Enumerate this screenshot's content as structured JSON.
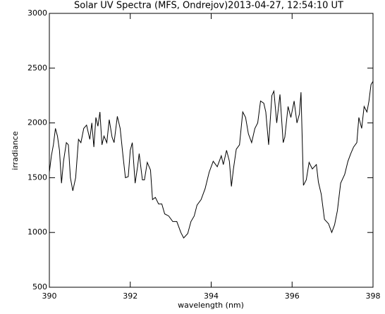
{
  "chart_data": {
    "type": "line",
    "title": "Solar UV Spectra (MFS, Ondrejov)2013-04-27, 12:54:10 UT",
    "x_label": "wavelength (nm)",
    "y_label": "irradiance",
    "xlim": [
      390,
      398
    ],
    "ylim": [
      500,
      3000
    ],
    "xticks": [
      390,
      392,
      394,
      396,
      398
    ],
    "yticks": [
      500,
      1000,
      1500,
      2000,
      2500,
      3000
    ],
    "series": [
      {
        "color": "#000000",
        "x": [
          390.0,
          390.05,
          390.1,
          390.15,
          390.2,
          390.25,
          390.3,
          390.35,
          390.42,
          390.47,
          390.52,
          390.58,
          390.65,
          390.72,
          390.78,
          390.85,
          390.92,
          391.0,
          391.05,
          391.1,
          391.15,
          391.2,
          391.25,
          391.3,
          391.35,
          391.42,
          391.48,
          391.55,
          391.6,
          391.68,
          391.75,
          391.82,
          391.88,
          391.95,
          392.0,
          392.05,
          392.12,
          392.18,
          392.22,
          392.3,
          392.35,
          392.42,
          392.5,
          392.55,
          392.62,
          392.7,
          392.78,
          392.85,
          392.95,
          393.05,
          393.15,
          393.25,
          393.32,
          393.42,
          393.5,
          393.58,
          393.65,
          393.75,
          393.85,
          393.95,
          394.05,
          394.15,
          394.25,
          394.3,
          394.38,
          394.45,
          394.5,
          394.55,
          394.62,
          394.7,
          394.78,
          394.85,
          394.92,
          395.0,
          395.08,
          395.15,
          395.22,
          395.3,
          395.35,
          395.42,
          395.5,
          395.55,
          395.62,
          395.7,
          395.78,
          395.82,
          395.9,
          395.97,
          396.05,
          396.12,
          396.18,
          396.22,
          396.28,
          396.35,
          396.42,
          396.5,
          396.6,
          396.65,
          396.72,
          396.8,
          396.9,
          396.98,
          397.05,
          397.12,
          397.2,
          397.3,
          397.38,
          397.45,
          397.52,
          397.6,
          397.65,
          397.72,
          397.78,
          397.85,
          397.9,
          397.95,
          398.0
        ],
        "values": [
          1550,
          1700,
          1800,
          1950,
          1880,
          1750,
          1450,
          1650,
          1820,
          1800,
          1500,
          1380,
          1500,
          1850,
          1820,
          1950,
          1980,
          1850,
          2000,
          1780,
          2050,
          1970,
          2100,
          1800,
          1880,
          1820,
          2030,
          1870,
          1820,
          2060,
          1950,
          1700,
          1500,
          1510,
          1750,
          1820,
          1450,
          1600,
          1720,
          1480,
          1480,
          1640,
          1570,
          1300,
          1320,
          1260,
          1260,
          1170,
          1150,
          1100,
          1100,
          1000,
          950,
          990,
          1100,
          1150,
          1250,
          1300,
          1400,
          1550,
          1650,
          1600,
          1700,
          1620,
          1750,
          1650,
          1420,
          1580,
          1760,
          1800,
          2100,
          2050,
          1900,
          1820,
          1950,
          2000,
          2200,
          2180,
          2100,
          1800,
          2250,
          2290,
          2000,
          2260,
          1820,
          1870,
          2150,
          2050,
          2200,
          2000,
          2080,
          2280,
          1430,
          1480,
          1640,
          1580,
          1620,
          1460,
          1350,
          1120,
          1080,
          1000,
          1070,
          1200,
          1450,
          1530,
          1650,
          1720,
          1780,
          1820,
          2050,
          1950,
          2150,
          2100,
          2200,
          2350,
          2380
        ]
      }
    ]
  }
}
